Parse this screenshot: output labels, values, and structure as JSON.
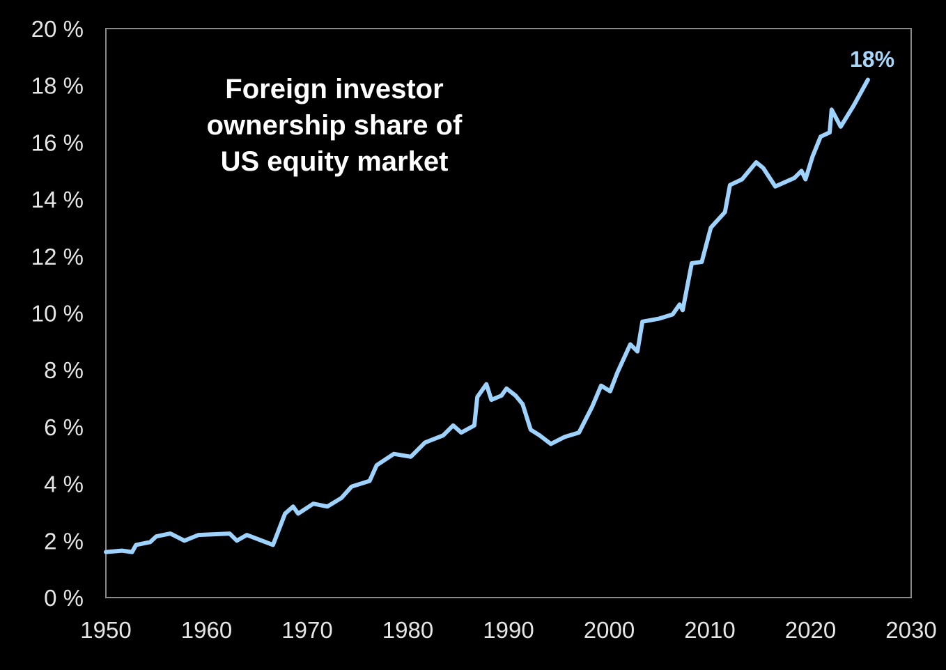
{
  "chart_data": {
    "type": "line",
    "title": [
      "Foreign investor",
      "ownership share of",
      "US equity market"
    ],
    "xlabel": "",
    "ylabel": "",
    "xlim": [
      1950,
      2030
    ],
    "ylim": [
      0,
      20
    ],
    "x_ticks": [
      "1950",
      "1960",
      "1970",
      "1980",
      "1990",
      "2000",
      "2010",
      "2020",
      "2030"
    ],
    "y_ticks": [
      "0 %",
      "2 %",
      "4 %",
      "6 %",
      "8 %",
      "10 %",
      "12 %",
      "14 %",
      "16 %",
      "18 %",
      "20 %"
    ],
    "grid": false,
    "legend": "none",
    "line_color": "#9fd3ff",
    "annotation": "18%",
    "series": [
      {
        "name": "Foreign investor ownership share of US equity market",
        "x": [
          1950,
          1951.6,
          1952.6,
          1953,
          1954.4,
          1955,
          1956.4,
          1957.8,
          1959.2,
          1962.3,
          1963,
          1964,
          1966.6,
          1967.8,
          1968.6,
          1969.1,
          1970.6,
          1972,
          1973.4,
          1974.4,
          1976.2,
          1976.9,
          1978.6,
          1980.3,
          1981.7,
          1983.5,
          1984.5,
          1985.3,
          1986.6,
          1986.9,
          1987.8,
          1988.3,
          1989.3,
          1989.8,
          1990.7,
          1991.4,
          1992.2,
          1993.1,
          1994.2,
          1995.6,
          1997,
          1998.3,
          1999.2,
          2000.1,
          2000.8,
          2002.1,
          2002.8,
          2003.3,
          2004.9,
          2006.3,
          2007,
          2007.3,
          2008.2,
          2009.2,
          2010.1,
          2011.5,
          2012,
          2013.2,
          2014.6,
          2015.3,
          2016.5,
          2018.4,
          2019.1,
          2019.5,
          2020.2,
          2021,
          2021.9,
          2022.1,
          2023,
          2024.3,
          2025.7
        ],
        "y": [
          1.6,
          1.65,
          1.6,
          1.85,
          1.95,
          2.15,
          2.25,
          2.0,
          2.2,
          2.25,
          2.0,
          2.2,
          1.85,
          2.95,
          3.2,
          2.95,
          3.3,
          3.2,
          3.5,
          3.9,
          4.1,
          4.65,
          5.05,
          4.95,
          5.45,
          5.7,
          6.05,
          5.8,
          6.05,
          7.05,
          7.5,
          6.95,
          7.1,
          7.35,
          7.1,
          6.8,
          5.9,
          5.7,
          5.4,
          5.65,
          5.8,
          6.7,
          7.45,
          7.25,
          7.9,
          8.9,
          8.65,
          9.7,
          9.8,
          9.95,
          10.3,
          10.1,
          11.75,
          11.8,
          13.0,
          13.55,
          14.5,
          14.7,
          15.3,
          15.1,
          14.45,
          14.75,
          15.0,
          14.7,
          15.5,
          16.2,
          16.35,
          17.15,
          16.55,
          17.3,
          18.2
        ]
      }
    ]
  }
}
